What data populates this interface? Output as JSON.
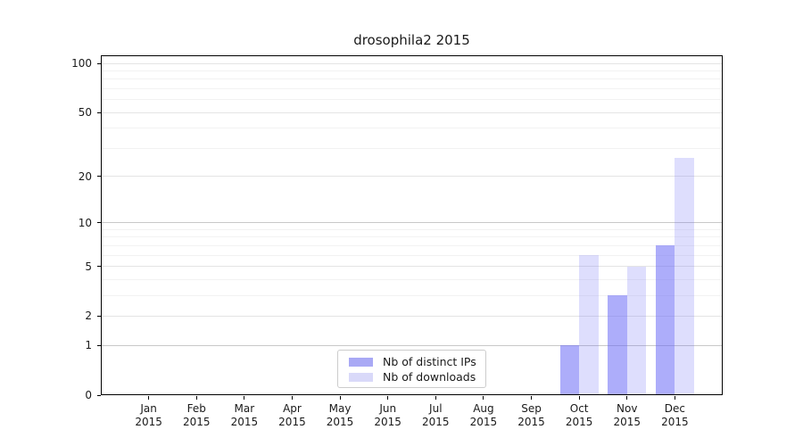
{
  "title": "drosophila2 2015",
  "chart_data": {
    "type": "bar",
    "title": "drosophila2 2015",
    "year_label": "2015",
    "categories": [
      "Jan",
      "Feb",
      "Mar",
      "Apr",
      "May",
      "Jun",
      "Jul",
      "Aug",
      "Sep",
      "Oct",
      "Nov",
      "Dec"
    ],
    "series": [
      {
        "name": "Nb of distinct IPs",
        "values": [
          0,
          0,
          0,
          0,
          0,
          0,
          0,
          0,
          0,
          1,
          3,
          7
        ],
        "bar_color": "rgba(105,105,245,0.55)",
        "legend_color": "#a9a9f5"
      },
      {
        "name": "Nb of downloads",
        "values": [
          0,
          0,
          0,
          0,
          0,
          0,
          0,
          0,
          0,
          6,
          5,
          26
        ],
        "bar_color": "rgba(105,105,245,0.22)",
        "legend_color": "#d9d9f9"
      }
    ],
    "yticks": [
      0,
      1,
      2,
      5,
      10,
      20,
      50,
      100
    ],
    "minor_gridlines": [
      3,
      4,
      6,
      7,
      8,
      9,
      30,
      40,
      60,
      70,
      80,
      90
    ],
    "emphasized_gridlines": [
      1,
      10
    ],
    "scale": "log1p",
    "ylim": [
      0,
      112
    ],
    "grid": true,
    "legend_position": "lower center"
  },
  "colors": {
    "axis": "#000000",
    "text": "#1a1a1a",
    "grid_major": "#e4e4e4",
    "grid_emphasis": "#c8c8c8",
    "grid_minor": "#f2f2f2",
    "legend_border": "#cccccc",
    "background": "#ffffff"
  }
}
